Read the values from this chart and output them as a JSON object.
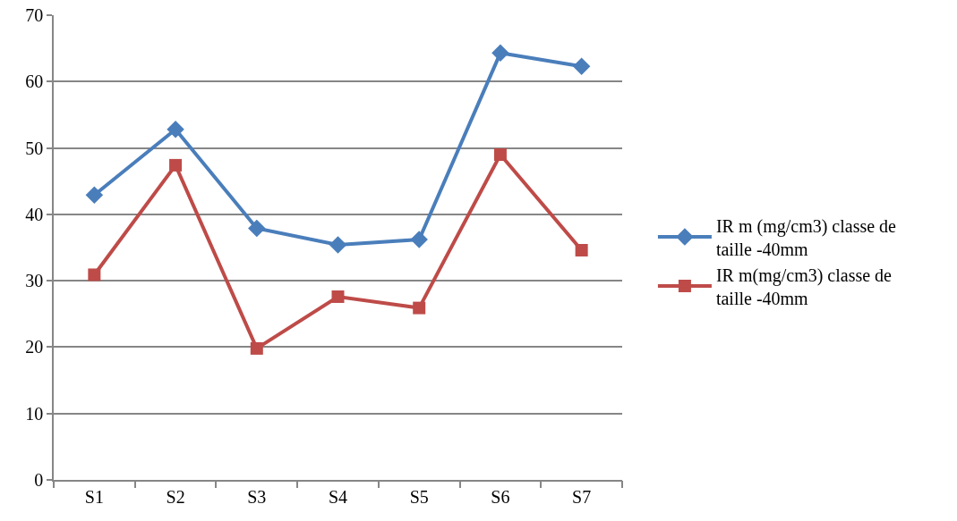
{
  "chart_data": {
    "type": "line",
    "categories": [
      "S1",
      "S2",
      "S3",
      "S4",
      "S5",
      "S6",
      "S7"
    ],
    "series": [
      {
        "name": "IR m (mg/cm3) classe de taille -40mm",
        "color": "#4a7ebb",
        "marker": "diamond",
        "values": [
          42.9,
          52.8,
          37.9,
          35.4,
          36.2,
          64.3,
          62.3
        ]
      },
      {
        "name": "IR m(mg/cm3) classe de taille -40mm",
        "color": "#be4b48",
        "marker": "square",
        "values": [
          30.9,
          47.4,
          19.8,
          27.6,
          25.9,
          49.0,
          34.6
        ]
      }
    ],
    "ylim": [
      0,
      70
    ],
    "yticks": [
      0,
      10,
      20,
      30,
      40,
      50,
      60,
      70
    ],
    "grid": "y",
    "legend": "right",
    "line_style": "solid"
  }
}
